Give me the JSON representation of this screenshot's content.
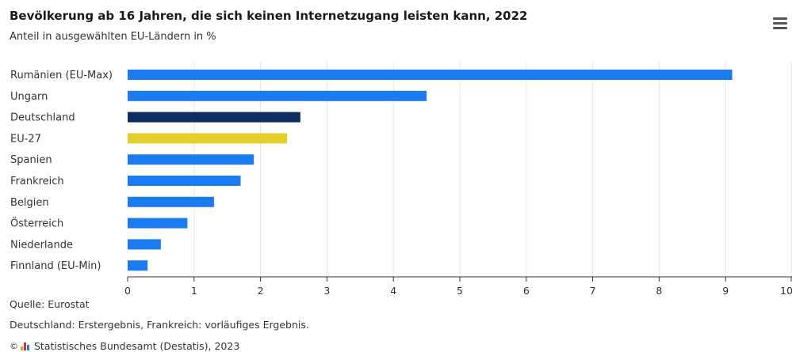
{
  "title": "Bevölkerung ab 16 Jahren, die sich keinen Internetzugang leisten kann, 2022",
  "subtitle": "Anteil in ausgewählten EU-Ländern in %",
  "menu_icon": "hamburger-menu-icon",
  "colors": {
    "default": "#1a7cf0",
    "germany": "#0b2f5e",
    "eu": "#e5cf2a",
    "grid": "#e6e6e6",
    "axis": "#333333"
  },
  "chart_data": {
    "type": "bar",
    "orientation": "horizontal",
    "categories": [
      "Rumänien (EU-Max)",
      "Ungarn",
      "Deutschland",
      "EU-27",
      "Spanien",
      "Frankreich",
      "Belgien",
      "Österreich",
      "Niederlande",
      "Finnland (EU-Min)"
    ],
    "values": [
      9.1,
      4.5,
      2.6,
      2.4,
      1.9,
      1.7,
      1.3,
      0.9,
      0.5,
      0.3
    ],
    "bar_colors": [
      "default",
      "default",
      "germany",
      "eu",
      "default",
      "default",
      "default",
      "default",
      "default",
      "default"
    ],
    "xlim": [
      0,
      10
    ],
    "xticks": [
      "0",
      "1",
      "2",
      "3",
      "4",
      "5",
      "6",
      "7",
      "8",
      "9",
      "10"
    ],
    "grid": true,
    "legend": "none"
  },
  "footer": {
    "source": "Quelle: Eurostat",
    "note": "Deutschland: Erstergebnis, Frankreich: vorläufiges Ergebnis.",
    "copyright_symbol": "©",
    "copyright": "Statistisches Bundesamt (Destatis), 2023",
    "logo_icon": "destatis-logo-icon"
  }
}
